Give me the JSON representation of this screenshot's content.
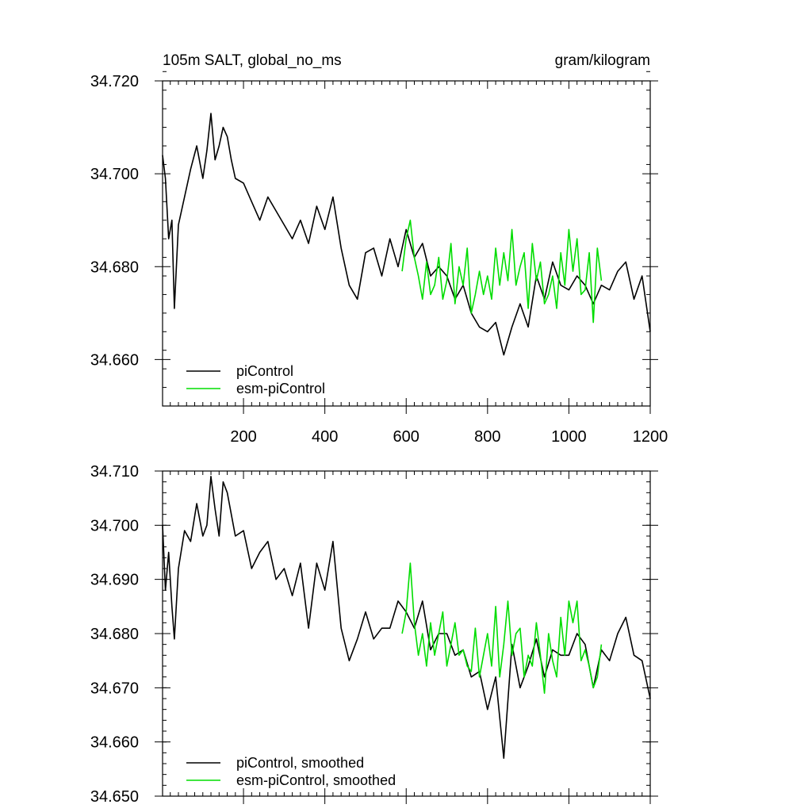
{
  "chart_data": [
    {
      "type": "line",
      "title": "105m SALT, global_no_ms",
      "units": "gram/kilogram",
      "xlim": [
        1,
        1200
      ],
      "ylim": [
        34.65,
        34.72
      ],
      "xticks": [
        200,
        400,
        600,
        800,
        1000,
        1200
      ],
      "xtick_labels": [
        "200",
        "400",
        "600",
        "800",
        "1000",
        "1200"
      ],
      "yticks": [
        34.66,
        34.68,
        34.7,
        34.72
      ],
      "ytick_labels": [
        "34.660",
        "34.680",
        "34.700",
        "34.720"
      ],
      "legend": "bottom-left",
      "series": [
        {
          "name": "piControl",
          "color": "#000000",
          "x": [
            1,
            8,
            16,
            24,
            30,
            40,
            55,
            70,
            85,
            100,
            110,
            120,
            130,
            140,
            150,
            160,
            170,
            180,
            200,
            220,
            240,
            260,
            280,
            300,
            320,
            340,
            360,
            380,
            400,
            420,
            440,
            460,
            480,
            500,
            520,
            540,
            560,
            580,
            600,
            620,
            640,
            660,
            680,
            700,
            720,
            740,
            760,
            780,
            800,
            820,
            840,
            860,
            880,
            900,
            920,
            940,
            960,
            980,
            1000,
            1020,
            1040,
            1060,
            1080,
            1100,
            1120,
            1140,
            1160,
            1180,
            1200
          ],
          "y": [
            34.704,
            34.699,
            34.686,
            34.69,
            34.671,
            34.689,
            34.695,
            34.701,
            34.706,
            34.699,
            34.705,
            34.713,
            34.703,
            34.706,
            34.71,
            34.708,
            34.703,
            34.699,
            34.698,
            34.694,
            34.69,
            34.695,
            34.692,
            34.689,
            34.686,
            34.69,
            34.685,
            34.693,
            34.688,
            34.695,
            34.684,
            34.676,
            34.673,
            34.683,
            34.684,
            34.678,
            34.686,
            34.68,
            34.688,
            34.682,
            34.685,
            34.678,
            34.68,
            34.678,
            34.673,
            34.676,
            34.67,
            34.667,
            34.666,
            34.668,
            34.661,
            34.667,
            34.672,
            34.667,
            34.678,
            34.673,
            34.681,
            34.676,
            34.675,
            34.678,
            34.676,
            34.672,
            34.676,
            34.675,
            34.679,
            34.681,
            34.673,
            34.678,
            34.666
          ]
        },
        {
          "name": "esm-piControl",
          "color": "#00dd00",
          "x": [
            590,
            600,
            610,
            620,
            630,
            640,
            650,
            660,
            670,
            680,
            690,
            700,
            710,
            720,
            730,
            740,
            750,
            760,
            770,
            780,
            790,
            800,
            810,
            820,
            830,
            840,
            850,
            860,
            870,
            880,
            890,
            900,
            910,
            920,
            930,
            940,
            950,
            960,
            970,
            980,
            990,
            1000,
            1010,
            1020,
            1030,
            1040,
            1050,
            1060,
            1070,
            1080
          ],
          "y": [
            34.679,
            34.686,
            34.69,
            34.682,
            34.678,
            34.673,
            34.681,
            34.674,
            34.676,
            34.682,
            34.673,
            34.677,
            34.685,
            34.672,
            34.68,
            34.676,
            34.684,
            34.67,
            34.674,
            34.679,
            34.674,
            34.678,
            34.673,
            34.684,
            34.676,
            34.683,
            34.677,
            34.688,
            34.676,
            34.68,
            34.683,
            34.671,
            34.685,
            34.677,
            34.681,
            34.672,
            34.674,
            34.678,
            34.671,
            34.683,
            34.676,
            34.688,
            34.679,
            34.686,
            34.674,
            34.675,
            34.683,
            34.668,
            34.684,
            34.677
          ]
        }
      ]
    },
    {
      "type": "line",
      "xlim": [
        1,
        1200
      ],
      "ylim": [
        34.65,
        34.71
      ],
      "yticks": [
        34.65,
        34.66,
        34.67,
        34.68,
        34.69,
        34.7,
        34.71
      ],
      "ytick_labels": [
        "34.650",
        "34.660",
        "34.670",
        "34.680",
        "34.690",
        "34.700",
        "34.710"
      ],
      "legend": "bottom-left",
      "series": [
        {
          "name": "piControl, smoothed",
          "color": "#000000",
          "x": [
            1,
            8,
            16,
            24,
            30,
            40,
            55,
            70,
            85,
            100,
            110,
            120,
            130,
            140,
            150,
            160,
            170,
            180,
            200,
            220,
            240,
            260,
            280,
            300,
            320,
            340,
            360,
            380,
            400,
            420,
            440,
            460,
            480,
            500,
            520,
            540,
            560,
            580,
            600,
            620,
            640,
            660,
            680,
            700,
            720,
            740,
            760,
            780,
            800,
            820,
            840,
            860,
            880,
            900,
            920,
            940,
            960,
            980,
            1000,
            1020,
            1040,
            1060,
            1080,
            1100,
            1120,
            1140,
            1160,
            1180,
            1200
          ],
          "y": [
            34.7,
            34.688,
            34.695,
            34.685,
            34.679,
            34.692,
            34.699,
            34.697,
            34.704,
            34.698,
            34.7,
            34.709,
            34.703,
            34.698,
            34.708,
            34.706,
            34.702,
            34.698,
            34.699,
            34.692,
            34.695,
            34.697,
            34.69,
            34.692,
            34.687,
            34.693,
            34.681,
            34.693,
            34.688,
            34.697,
            34.681,
            34.675,
            34.679,
            34.684,
            34.679,
            34.681,
            34.681,
            34.686,
            34.684,
            34.681,
            34.686,
            34.677,
            34.68,
            34.68,
            34.676,
            34.677,
            34.672,
            34.673,
            34.666,
            34.672,
            34.657,
            34.678,
            34.67,
            34.674,
            34.679,
            34.672,
            34.677,
            34.676,
            34.676,
            34.68,
            34.678,
            34.67,
            34.677,
            34.675,
            34.68,
            34.683,
            34.676,
            34.675,
            34.668
          ]
        },
        {
          "name": "esm-piControl, smoothed",
          "color": "#00dd00",
          "x": [
            590,
            600,
            610,
            620,
            630,
            640,
            650,
            660,
            670,
            680,
            690,
            700,
            710,
            720,
            730,
            740,
            750,
            760,
            770,
            780,
            790,
            800,
            810,
            820,
            830,
            840,
            850,
            860,
            870,
            880,
            890,
            900,
            910,
            920,
            930,
            940,
            950,
            960,
            970,
            980,
            990,
            1000,
            1010,
            1020,
            1030,
            1040,
            1050,
            1060,
            1070,
            1080
          ],
          "y": [
            34.68,
            34.684,
            34.693,
            34.682,
            34.676,
            34.68,
            34.674,
            34.682,
            34.676,
            34.68,
            34.684,
            34.674,
            34.678,
            34.682,
            34.676,
            34.677,
            34.674,
            34.673,
            34.681,
            34.672,
            34.676,
            34.68,
            34.674,
            34.685,
            34.672,
            34.678,
            34.686,
            34.676,
            34.68,
            34.681,
            34.672,
            34.676,
            34.674,
            34.682,
            34.676,
            34.669,
            34.68,
            34.675,
            34.672,
            34.683,
            34.676,
            34.686,
            34.682,
            34.686,
            34.675,
            34.677,
            34.674,
            34.67,
            34.672,
            34.678
          ]
        }
      ]
    }
  ]
}
